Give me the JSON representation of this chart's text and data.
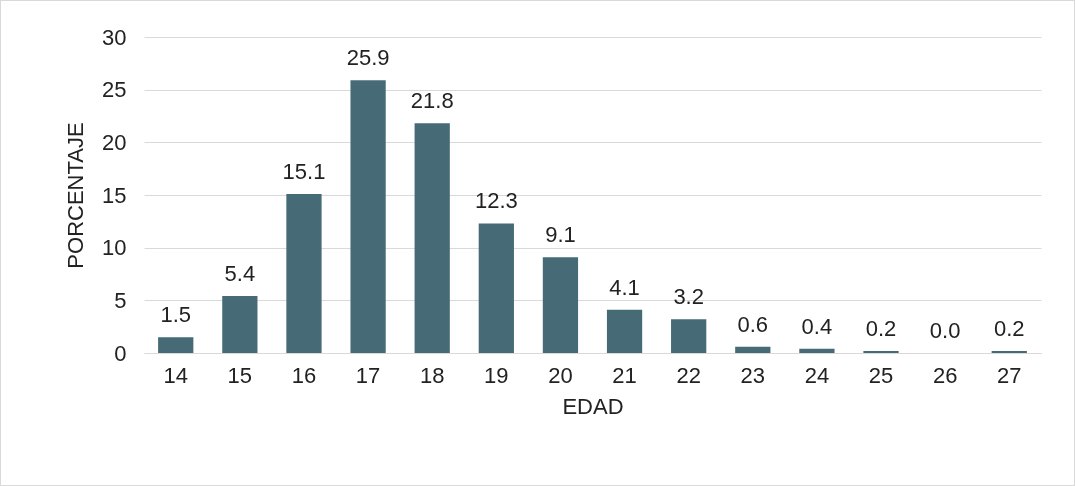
{
  "chart_data": {
    "type": "bar",
    "xlabel": "EDAD",
    "ylabel": "PORCENTAJE",
    "categories": [
      "14",
      "15",
      "16",
      "17",
      "18",
      "19",
      "20",
      "21",
      "22",
      "23",
      "24",
      "25",
      "26",
      "27"
    ],
    "values": [
      1.5,
      5.4,
      15.1,
      25.9,
      21.8,
      12.3,
      9.1,
      4.1,
      3.2,
      0.6,
      0.4,
      0.2,
      0.0,
      0.2
    ],
    "value_labels": [
      "1.5",
      "5.4",
      "15.1",
      "25.9",
      "21.8",
      "12.3",
      "9.1",
      "4.1",
      "3.2",
      "0.6",
      "0.4",
      "0.2",
      "0.0",
      "0.2"
    ],
    "color": "#466b77",
    "ylim": [
      0,
      30
    ],
    "yticks": [
      0,
      5,
      10,
      15,
      20,
      25,
      30
    ],
    "grid": "y"
  }
}
